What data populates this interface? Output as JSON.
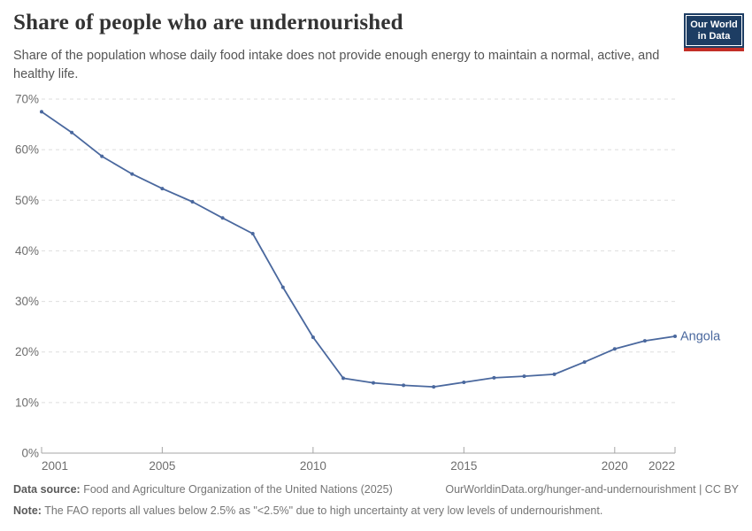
{
  "header": {
    "title": "Share of people who are undernourished",
    "subtitle": "Share of the population whose daily food intake does not provide enough energy to maintain a normal, active, and healthy life."
  },
  "logo": {
    "line1": "Our World",
    "line2": "in Data"
  },
  "chart_data": {
    "type": "line",
    "title": "Share of people who are undernourished",
    "x": [
      2001,
      2002,
      2003,
      2004,
      2005,
      2006,
      2007,
      2008,
      2009,
      2010,
      2011,
      2012,
      2013,
      2014,
      2015,
      2016,
      2017,
      2018,
      2019,
      2020,
      2021,
      2022
    ],
    "series": [
      {
        "name": "Angola",
        "color": "#4A689E",
        "values": [
          67.5,
          63.4,
          58.7,
          55.2,
          52.3,
          49.7,
          46.5,
          43.4,
          32.8,
          22.9,
          14.8,
          13.9,
          13.4,
          13.1,
          14.0,
          14.9,
          15.2,
          15.6,
          18.0,
          20.6,
          22.2,
          23.1
        ]
      }
    ],
    "xlim": [
      2001,
      2022
    ],
    "ylim": [
      0,
      70
    ],
    "yticks": [
      {
        "value": 0,
        "label": "0%"
      },
      {
        "value": 10,
        "label": "10%"
      },
      {
        "value": 20,
        "label": "20%"
      },
      {
        "value": 30,
        "label": "30%"
      },
      {
        "value": 40,
        "label": "40%"
      },
      {
        "value": 50,
        "label": "50%"
      },
      {
        "value": 60,
        "label": "60%"
      },
      {
        "value": 70,
        "label": "70%"
      }
    ],
    "xticks": [
      {
        "value": 2001,
        "label": "2001",
        "align": "start"
      },
      {
        "value": 2005,
        "label": "2005",
        "align": "middle"
      },
      {
        "value": 2010,
        "label": "2010",
        "align": "middle"
      },
      {
        "value": 2015,
        "label": "2015",
        "align": "middle"
      },
      {
        "value": 2020,
        "label": "2020",
        "align": "middle"
      },
      {
        "value": 2022,
        "label": "2022",
        "align": "end"
      }
    ],
    "grid": true,
    "legend_position": "end-of-line-label"
  },
  "footer": {
    "datasource_label": "Data source:",
    "datasource_text": "Food and Agriculture Organization of the United Nations (2025)",
    "link_text": "OurWorldinData.org/hunger-and-undernourishment | CC BY",
    "note_label": "Note:",
    "note_text": "The FAO reports all values below 2.5% as \"<2.5%\" due to high uncertainty at very low levels of undernourishment."
  },
  "colors": {
    "accent": "#4A689E",
    "grid": "#DEDEDE",
    "axis": "#A5A5A5",
    "logo_bg": "#1D3D63",
    "logo_bar": "#C32E27"
  }
}
